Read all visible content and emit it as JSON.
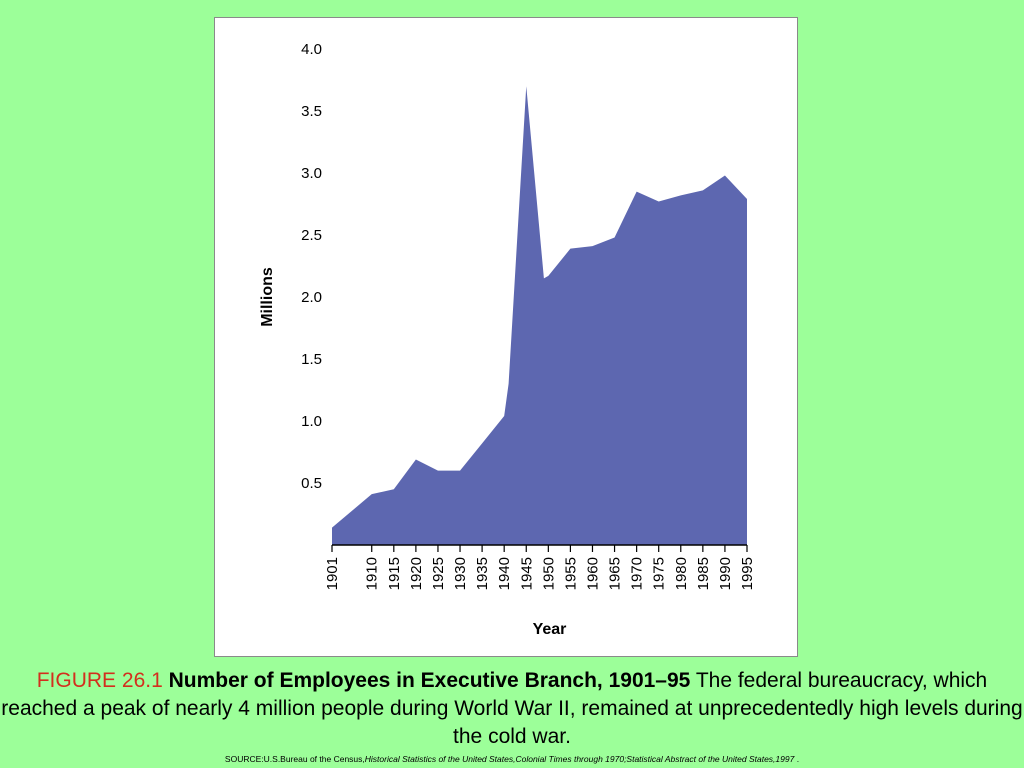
{
  "colors": {
    "background": "#9cff99",
    "area_fill": "#5d67b0",
    "figure_number": "#d32f1e"
  },
  "caption": {
    "figure_number": "FIGURE 26.1",
    "title": "Number of Employees in Executive Branch, 1901–95",
    "text": "The federal bureaucracy, which reached a peak of nearly 4 million people during World War II, remained at unprecedentedly high levels during the cold war.",
    "source_prefix": "SOURCE:U.S.Bureau of the Census,",
    "source_italic": "Historical Statistics of the United States,Colonial Times through 1970;Statistical Abstract of the United States,1997",
    "source_suffix": " ."
  },
  "chart_data": {
    "type": "area",
    "title": "",
    "xlabel": "Year",
    "ylabel": "Millions",
    "ylim": [
      0,
      4.0
    ],
    "xlim": [
      1901,
      1995
    ],
    "yticks": [
      "0.5",
      "1.0",
      "1.5",
      "2.0",
      "2.5",
      "3.0",
      "3.5",
      "4.0"
    ],
    "xticks": [
      "1901",
      "1910",
      "1915",
      "1920",
      "1925",
      "1930",
      "1935",
      "1940",
      "1945",
      "1950",
      "1955",
      "1960",
      "1965",
      "1970",
      "1975",
      "1980",
      "1985",
      "1990",
      "1995"
    ],
    "grid": false,
    "x": [
      1901,
      1910,
      1915,
      1920,
      1925,
      1930,
      1935,
      1940,
      1941,
      1945,
      1949,
      1950,
      1955,
      1960,
      1965,
      1970,
      1975,
      1980,
      1985,
      1990,
      1995
    ],
    "y": [
      0.14,
      0.41,
      0.45,
      0.69,
      0.6,
      0.6,
      0.82,
      1.04,
      1.3,
      3.7,
      2.15,
      2.17,
      2.39,
      2.41,
      2.48,
      2.85,
      2.77,
      2.82,
      2.86,
      2.98,
      2.79
    ]
  }
}
